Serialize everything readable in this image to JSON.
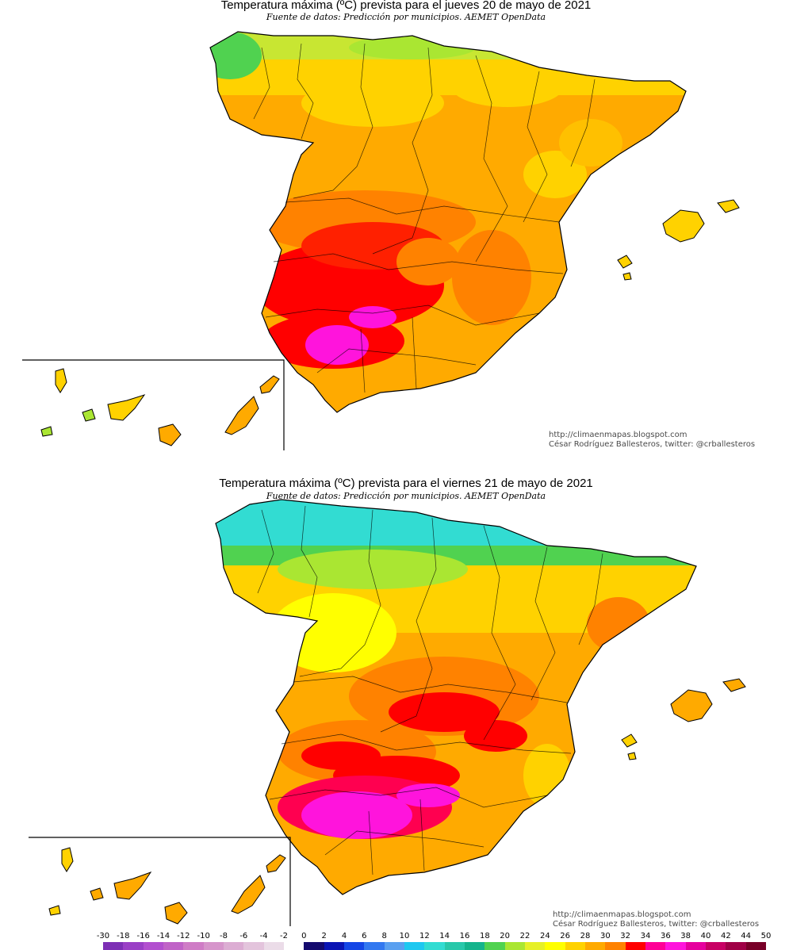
{
  "maps": [
    {
      "title": "Temperatura máxima (ºC) prevista para el jueves 20 de mayo de 2021",
      "subtitle": "Fuente de datos: Predicción por municipios. AEMET OpenData",
      "credit_url": "http://climaenmapas.blogspot.com",
      "credit_author": "César Rodríguez Ballesteros, twitter: @crballesteros"
    },
    {
      "title": "Temperatura máxima (ºC) prevista para el viernes 21 de mayo de 2021",
      "subtitle": "Fuente de datos: Predicción por municipios. AEMET OpenData",
      "credit_url": "http://climaenmapas.blogspot.com",
      "credit_author": "César Rodríguez Ballesteros, twitter: @crballesteros"
    }
  ],
  "legend": {
    "labels": [
      "-30",
      "-18",
      "-16",
      "-14",
      "-12",
      "-10",
      "-8",
      "-6",
      "-4",
      "-2",
      "0",
      "2",
      "4",
      "6",
      "8",
      "10",
      "12",
      "14",
      "16",
      "18",
      "20",
      "22",
      "24",
      "26",
      "28",
      "30",
      "32",
      "34",
      "36",
      "38",
      "40",
      "42",
      "44",
      "50"
    ],
    "colors": [
      "#7d2fb5",
      "#9a3fc6",
      "#b24fcf",
      "#c063c7",
      "#cf7cc6",
      "#d695cb",
      "#dcadd3",
      "#e3c4dc",
      "#ebdce8",
      "#ffffff",
      "#140a6e",
      "#0a14b4",
      "#1446e6",
      "#3278f0",
      "#5aa0f0",
      "#1ec8f0",
      "#32dcd2",
      "#28c8aa",
      "#14b48c",
      "#50d250",
      "#aae632",
      "#e6f028",
      "#ffff00",
      "#ffd200",
      "#ffaa00",
      "#ff8200",
      "#ff0000",
      "#ff0096",
      "#ff14dc",
      "#e6009e",
      "#c80064",
      "#a00046",
      "#780028",
      "#500014"
    ]
  }
}
